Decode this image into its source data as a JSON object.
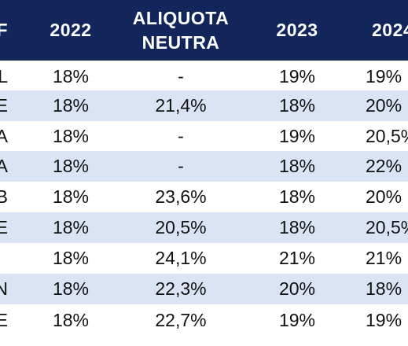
{
  "table": {
    "headers": [
      "F",
      "2022",
      "ALIQUOTA\nNEUTRA",
      "2023",
      "2024"
    ],
    "rows": [
      [
        "L",
        "18%",
        "-",
        "19%",
        "19%"
      ],
      [
        "E",
        "18%",
        "21,4%",
        "18%",
        "20%"
      ],
      [
        "A",
        "18%",
        "-",
        "19%",
        "20,5%"
      ],
      [
        "A",
        "18%",
        "-",
        "18%",
        "22%"
      ],
      [
        "B",
        "18%",
        "23,6%",
        "18%",
        "20%"
      ],
      [
        "E",
        "18%",
        "20,5%",
        "18%",
        "20,5%"
      ],
      [
        "",
        "18%",
        "24,1%",
        "21%",
        "21%"
      ],
      [
        "N",
        "18%",
        "22,3%",
        "20%",
        "18%"
      ],
      [
        "E",
        "18%",
        "22,7%",
        "19%",
        "19%"
      ]
    ]
  },
  "colors": {
    "header_bg": "#13265c",
    "header_text": "#ffffff",
    "alt_row_bg": "#dae4f4"
  }
}
